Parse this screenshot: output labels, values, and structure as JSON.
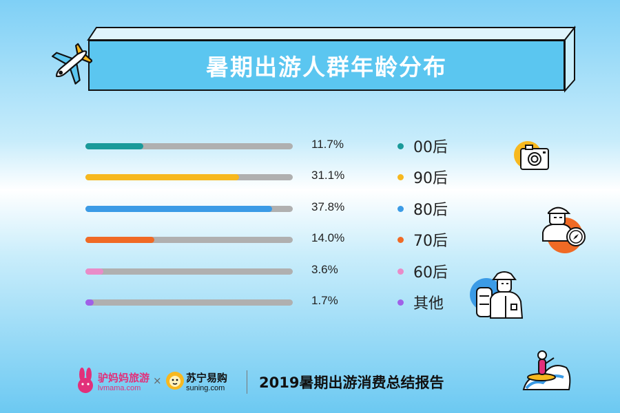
{
  "title": "暑期出游人群年龄分布",
  "chart_data": {
    "type": "bar",
    "orientation": "horizontal",
    "categories": [
      "00后",
      "90后",
      "80后",
      "70后",
      "60后",
      "其他"
    ],
    "values": [
      11.7,
      31.1,
      37.8,
      14.0,
      3.6,
      1.7
    ],
    "value_labels": [
      "11.7%",
      "31.1%",
      "37.8%",
      "14.0%",
      "3.6%",
      "1.7%"
    ],
    "colors": [
      "#1a9a9a",
      "#f7b81f",
      "#3b9be6",
      "#f06a25",
      "#e98cc8",
      "#a061e8"
    ],
    "track_color": "#b0b0b0",
    "xlim": [
      0,
      42
    ],
    "legend_placement": "right",
    "grid": false
  },
  "footer": {
    "brand_lvmama": "驴妈妈旅游",
    "brand_lvmama_url": "lvmama.com",
    "separator": "×",
    "brand_suning": "苏宁易购",
    "brand_suning_url": "suning.com",
    "report_title": "2019暑期出游消费总结报告"
  },
  "icons": {
    "title": "airplane-icon",
    "row_00": "camera-icon",
    "row_70": "hiker-compass-icon",
    "row_60": "explorer-backpack-icon",
    "corner": "surfer-wave-icon"
  }
}
